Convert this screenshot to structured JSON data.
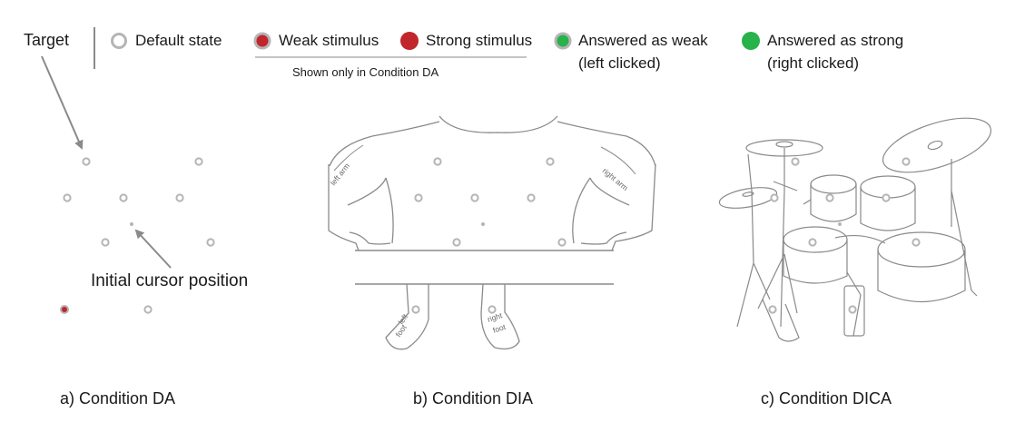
{
  "legend": {
    "target_label": "Target",
    "items": [
      {
        "label": "Default state",
        "fill": "#ffffff",
        "stroke": "#b5b5b5"
      },
      {
        "label": "Weak stimulus",
        "fill": "#c0262c",
        "stroke": "#b5b5b5"
      },
      {
        "label": "Strong stimulus",
        "fill": "#c0262c",
        "stroke": "#c0262c"
      },
      {
        "label_line1": "Answered as weak",
        "label_line2": "(left clicked)",
        "fill": "#27b24a",
        "stroke": "#b5b5b5"
      },
      {
        "label_line1": "Answered as strong",
        "label_line2": "(right clicked)",
        "fill": "#27b24a",
        "stroke": "#27b24a"
      }
    ],
    "da_note": "Shown only in Condition DA"
  },
  "panels": [
    {
      "caption": "a) Condition DA",
      "annotation": "Initial cursor position"
    },
    {
      "caption": "b) Condition DIA",
      "body_labels": {
        "left_arm": "left arm",
        "right_arm": "right arm",
        "left_foot_1": "left",
        "left_foot_2": "foot",
        "right_foot_1": "right",
        "right_foot_2": "foot"
      }
    },
    {
      "caption": "c) Condition DICA"
    }
  ],
  "colors": {
    "target_ring": "#b5b5b5",
    "weak": "#c0262c",
    "answered": "#27b24a",
    "sketch": "#8a8a8a"
  }
}
